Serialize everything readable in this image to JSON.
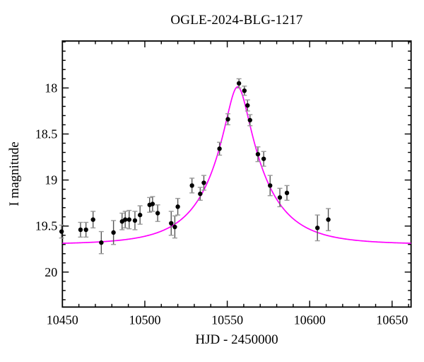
{
  "title": "OGLE-2024-BLG-1217",
  "chart_data": {
    "type": "scatter",
    "title": "OGLE-2024-BLG-1217",
    "xlabel": "HJD - 2450000",
    "ylabel": "I magnitude",
    "x_range": [
      10450,
      10661.5
    ],
    "ylim_mag": [
      17.49,
      20.38
    ],
    "y_inverted": true,
    "grid": false,
    "x_major_ticks": [
      10450,
      10500,
      10550,
      10600,
      10650
    ],
    "x_minor_step": 10,
    "y_major_ticks": [
      18,
      18.5,
      19,
      19.5,
      20
    ],
    "y_minor_step": 0.1,
    "colors": {
      "frame": "#000000",
      "point": "#000000",
      "errorbar": "#555555",
      "errorcap": "#999999",
      "model_curve": "#ff00ff",
      "background": "#ffffff"
    },
    "series": [
      {
        "name": "OGLE I-band photometry",
        "kind": "scatter-errorbar",
        "points_format": [
          "hjd_minus_2450000",
          "I_mag",
          "mag_err"
        ],
        "points": [
          [
            10449.5,
            19.56,
            0.07
          ],
          [
            10461.0,
            19.54,
            0.08
          ],
          [
            10464.3,
            19.54,
            0.08
          ],
          [
            10468.6,
            19.43,
            0.09
          ],
          [
            10473.6,
            19.68,
            0.12
          ],
          [
            10481.0,
            19.57,
            0.13
          ],
          [
            10486.2,
            19.45,
            0.09
          ],
          [
            10488.1,
            19.43,
            0.09
          ],
          [
            10490.5,
            19.43,
            0.1
          ],
          [
            10494.0,
            19.44,
            0.1
          ],
          [
            10497.1,
            19.38,
            0.1
          ],
          [
            10502.9,
            19.27,
            0.08
          ],
          [
            10504.7,
            19.26,
            0.08
          ],
          [
            10507.8,
            19.36,
            0.09
          ],
          [
            10516.0,
            19.47,
            0.13
          ],
          [
            10518.2,
            19.51,
            0.12
          ],
          [
            10520.0,
            19.29,
            0.09
          ],
          [
            10528.6,
            19.06,
            0.08
          ],
          [
            10533.6,
            19.15,
            0.07
          ],
          [
            10535.8,
            19.03,
            0.08
          ],
          [
            10545.3,
            18.66,
            0.07
          ],
          [
            10550.4,
            18.34,
            0.06
          ],
          [
            10557.1,
            17.95,
            0.05
          ],
          [
            10560.4,
            18.03,
            0.05
          ],
          [
            10562.3,
            18.19,
            0.06
          ],
          [
            10563.8,
            18.35,
            0.06
          ],
          [
            10568.6,
            18.72,
            0.08
          ],
          [
            10572.1,
            18.77,
            0.08
          ],
          [
            10576.0,
            19.06,
            0.11
          ],
          [
            10581.9,
            19.19,
            0.1
          ],
          [
            10586.2,
            19.14,
            0.08
          ],
          [
            10604.7,
            19.52,
            0.14
          ],
          [
            10611.3,
            19.43,
            0.12
          ]
        ]
      },
      {
        "name": "Paczynski microlensing model",
        "kind": "line",
        "model": {
          "type": "paczynski",
          "t0": 10556.3,
          "tE": 32,
          "u0": 0.21,
          "I0": 19.7
        }
      }
    ]
  }
}
